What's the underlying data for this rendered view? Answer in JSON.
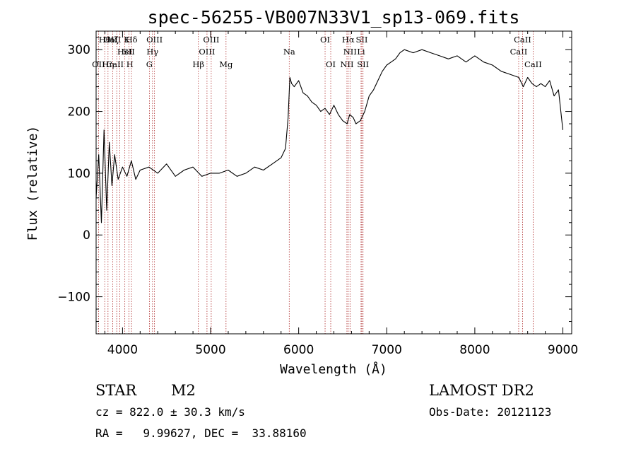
{
  "chart_data": {
    "type": "line",
    "title": "spec-56255-VB007N33V1_sp13-069.fits",
    "xlabel": "Wavelength (Å)",
    "ylabel": "Flux (relative)",
    "xlim": [
      3700,
      9100
    ],
    "ylim": [
      -160,
      330
    ],
    "xticks": [
      4000,
      5000,
      6000,
      7000,
      8000,
      9000
    ],
    "yticks": [
      -100,
      0,
      100,
      200,
      300
    ],
    "series": [
      {
        "color": "#000000",
        "x": [
          3700,
          3730,
          3760,
          3790,
          3820,
          3850,
          3880,
          3910,
          3950,
          4000,
          4050,
          4100,
          4150,
          4200,
          4300,
          4400,
          4500,
          4600,
          4700,
          4800,
          4900,
          5000,
          5100,
          5200,
          5300,
          5400,
          5500,
          5600,
          5700,
          5800,
          5850,
          5880,
          5900,
          5920,
          5950,
          6000,
          6050,
          6100,
          6150,
          6200,
          6250,
          6300,
          6350,
          6400,
          6450,
          6500,
          6550,
          6580,
          6620,
          6650,
          6700,
          6750,
          6800,
          6850,
          6900,
          6950,
          7000,
          7050,
          7100,
          7150,
          7200,
          7300,
          7400,
          7500,
          7600,
          7700,
          7800,
          7900,
          8000,
          8100,
          8200,
          8300,
          8400,
          8500,
          8550,
          8600,
          8650,
          8700,
          8750,
          8800,
          8850,
          8900,
          8950,
          9000
        ],
        "y": [
          60,
          130,
          20,
          170,
          40,
          150,
          80,
          130,
          90,
          110,
          95,
          120,
          90,
          105,
          110,
          100,
          115,
          95,
          105,
          110,
          95,
          100,
          100,
          105,
          95,
          100,
          110,
          105,
          115,
          125,
          140,
          190,
          255,
          245,
          240,
          250,
          230,
          225,
          215,
          210,
          200,
          205,
          195,
          210,
          195,
          185,
          180,
          195,
          190,
          180,
          185,
          200,
          225,
          235,
          250,
          265,
          275,
          280,
          285,
          295,
          300,
          295,
          300,
          295,
          290,
          285,
          290,
          280,
          290,
          280,
          275,
          265,
          260,
          255,
          240,
          255,
          245,
          240,
          245,
          240,
          250,
          225,
          235,
          170
        ]
      }
    ],
    "spectral_lines": [
      {
        "label": "OII",
        "x": 3727,
        "row": 2
      },
      {
        "label": "Hθ",
        "x": 3798,
        "row": 0
      },
      {
        "label": "Hη",
        "x": 3835,
        "row": 2
      },
      {
        "label": "Hζ",
        "x": 3889,
        "row": 0
      },
      {
        "label": "CaII K",
        "x": 3934,
        "row": 0
      },
      {
        "label": "CaII H",
        "x": 3969,
        "row": 2
      },
      {
        "label": "HeI",
        "x": 4026,
        "row": 1
      },
      {
        "label": "Hδ",
        "x": 4102,
        "row": 0
      },
      {
        "label": "SII",
        "x": 4072,
        "row": 1
      },
      {
        "label": "G",
        "x": 4305,
        "row": 2
      },
      {
        "label": "Hγ",
        "x": 4340,
        "row": 1
      },
      {
        "label": "OIII",
        "x": 4363,
        "row": 0
      },
      {
        "label": "Hβ",
        "x": 4861,
        "row": 2
      },
      {
        "label": "OIII",
        "x": 4959,
        "row": 1
      },
      {
        "label": "OIII",
        "x": 5007,
        "row": 0
      },
      {
        "label": "Mg",
        "x": 5175,
        "row": 2
      },
      {
        "label": "Na",
        "x": 5893,
        "row": 1
      },
      {
        "label": "OI",
        "x": 6300,
        "row": 0
      },
      {
        "label": "OI",
        "x": 6364,
        "row": 2
      },
      {
        "label": "NII",
        "x": 6548,
        "row": 2
      },
      {
        "label": "Hα",
        "x": 6563,
        "row": 0
      },
      {
        "label": "NII",
        "x": 6583,
        "row": 1
      },
      {
        "label": "Li",
        "x": 6708,
        "row": 1
      },
      {
        "label": "SII",
        "x": 6717,
        "row": 0
      },
      {
        "label": "SII",
        "x": 6731,
        "row": 2
      },
      {
        "label": "CaII",
        "x": 8498,
        "row": 1
      },
      {
        "label": "CaII",
        "x": 8542,
        "row": 0
      },
      {
        "label": "CaII",
        "x": 8662,
        "row": 2
      }
    ],
    "line_color": "#b03030"
  },
  "info": {
    "class_label": "STAR",
    "subclass_label": "M2",
    "survey_label": "LAMOST DR2",
    "redshift_text": "cz = 822.0 ± 30.3 km/s",
    "obsdate_text": "Obs-Date: 20121123",
    "coords_text": "RA =   9.99627, DEC =  33.88160"
  }
}
